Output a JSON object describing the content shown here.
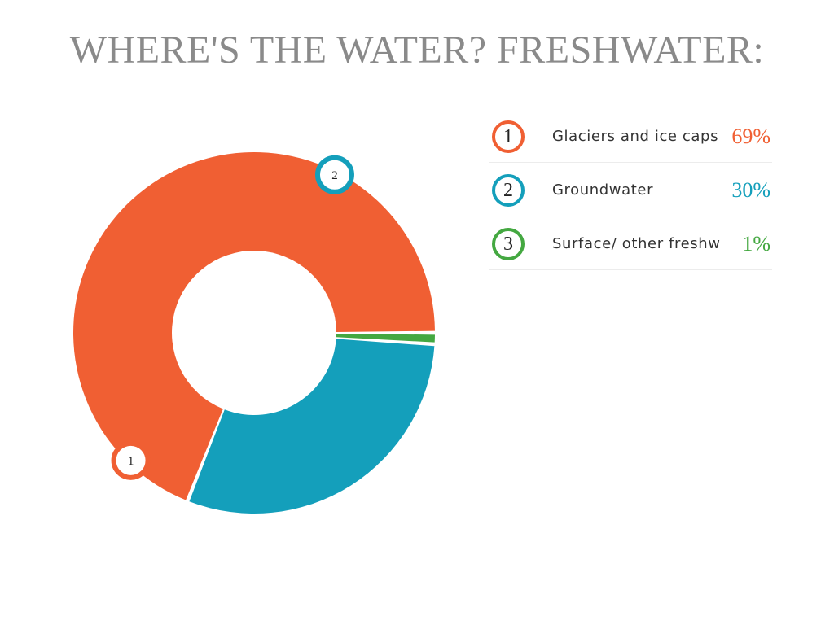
{
  "chart_data": {
    "type": "pie",
    "title": "WHERE'S THE WATER? FRESHWATER:",
    "slices": [
      {
        "id": "1",
        "label": "Glaciers and ice caps",
        "value": 69,
        "display": "69%",
        "color": "#f05f33"
      },
      {
        "id": "2",
        "label": "Groundwater",
        "value": 30,
        "display": "30%",
        "color": "#149fbb"
      },
      {
        "id": "3",
        "label": "Surface/ other freshw",
        "value": 1,
        "display": "1%",
        "color": "#44a841"
      }
    ],
    "legend_position": "right"
  }
}
